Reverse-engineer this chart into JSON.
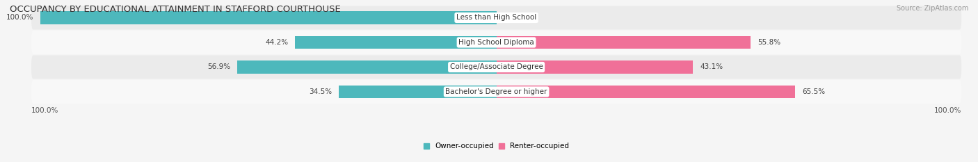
{
  "title": "OCCUPANCY BY EDUCATIONAL ATTAINMENT IN STAFFORD COURTHOUSE",
  "source": "Source: ZipAtlas.com",
  "categories": [
    "Less than High School",
    "High School Diploma",
    "College/Associate Degree",
    "Bachelor's Degree or higher"
  ],
  "owner_pct": [
    100.0,
    44.2,
    56.9,
    34.5
  ],
  "renter_pct": [
    0.0,
    55.8,
    43.1,
    65.5
  ],
  "owner_color": "#4db8bc",
  "renter_color": "#f07098",
  "row_bg_light": "#ebebeb",
  "row_bg_white": "#f8f8f8",
  "fig_bg": "#f5f5f5",
  "title_fontsize": 9.5,
  "label_fontsize": 7.5,
  "source_fontsize": 7,
  "axis_label_left": "100.0%",
  "axis_label_right": "100.0%",
  "legend_owner": "Owner-occupied",
  "legend_renter": "Renter-occupied"
}
